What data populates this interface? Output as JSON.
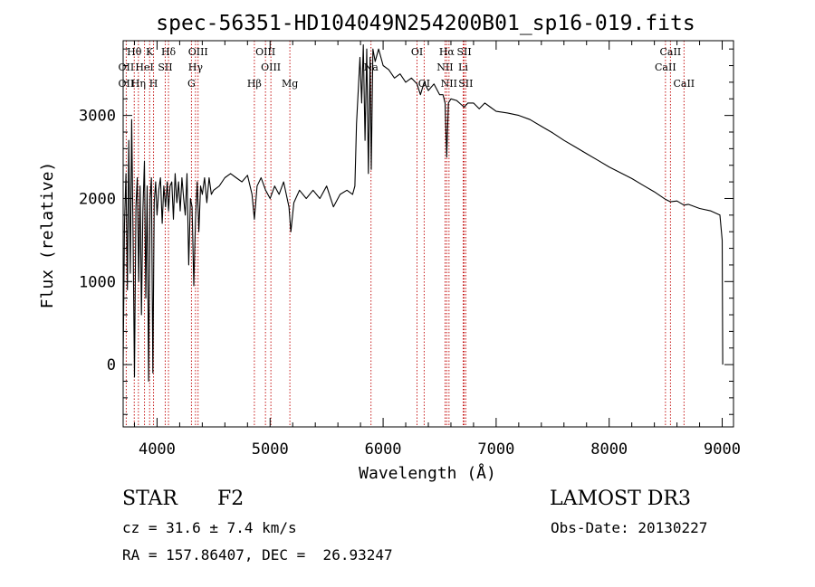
{
  "chart_data": {
    "type": "line",
    "title": "spec-56351-HD104049N254200B01_sp16-019.fits",
    "xlabel": "Wavelength (Å)",
    "ylabel": "Flux (relative)",
    "xlim": [
      3700,
      9100
    ],
    "ylim": [
      -750,
      3900
    ],
    "xticks": [
      4000,
      5000,
      6000,
      7000,
      8000,
      9000
    ],
    "yticks": [
      0,
      1000,
      2000,
      3000
    ],
    "grid": false,
    "series": [
      {
        "name": "spectrum",
        "points": [
          [
            3700,
            0
          ],
          [
            3712,
            1700
          ],
          [
            3725,
            2300
          ],
          [
            3738,
            900
          ],
          [
            3750,
            2700
          ],
          [
            3763,
            1100
          ],
          [
            3775,
            2950
          ],
          [
            3788,
            1500
          ],
          [
            3800,
            -150
          ],
          [
            3813,
            1900
          ],
          [
            3825,
            2250
          ],
          [
            3838,
            1000
          ],
          [
            3850,
            2150
          ],
          [
            3862,
            600
          ],
          [
            3875,
            1850
          ],
          [
            3888,
            2450
          ],
          [
            3900,
            800
          ],
          [
            3912,
            2150
          ],
          [
            3925,
            -200
          ],
          [
            3938,
            2000
          ],
          [
            3950,
            2250
          ],
          [
            3963,
            -100
          ],
          [
            3975,
            1950
          ],
          [
            3988,
            2200
          ],
          [
            4000,
            1800
          ],
          [
            4015,
            2100
          ],
          [
            4030,
            2250
          ],
          [
            4045,
            1700
          ],
          [
            4060,
            2150
          ],
          [
            4075,
            1900
          ],
          [
            4090,
            2200
          ],
          [
            4101,
            1850
          ],
          [
            4115,
            2150
          ],
          [
            4130,
            2200
          ],
          [
            4145,
            1750
          ],
          [
            4160,
            2300
          ],
          [
            4175,
            1950
          ],
          [
            4190,
            2200
          ],
          [
            4205,
            1850
          ],
          [
            4220,
            2250
          ],
          [
            4235,
            2000
          ],
          [
            4250,
            1800
          ],
          [
            4265,
            2300
          ],
          [
            4280,
            1200
          ],
          [
            4295,
            2000
          ],
          [
            4310,
            1900
          ],
          [
            4325,
            950
          ],
          [
            4340,
            1750
          ],
          [
            4355,
            2200
          ],
          [
            4370,
            1600
          ],
          [
            4385,
            2150
          ],
          [
            4400,
            2050
          ],
          [
            4420,
            2250
          ],
          [
            4440,
            1950
          ],
          [
            4460,
            2250
          ],
          [
            4480,
            2050
          ],
          [
            4500,
            2100
          ],
          [
            4550,
            2150
          ],
          [
            4600,
            2250
          ],
          [
            4650,
            2300
          ],
          [
            4700,
            2250
          ],
          [
            4750,
            2200
          ],
          [
            4800,
            2280
          ],
          [
            4840,
            2050
          ],
          [
            4861,
            1750
          ],
          [
            4885,
            2150
          ],
          [
            4920,
            2250
          ],
          [
            4960,
            2100
          ],
          [
            5000,
            2000
          ],
          [
            5040,
            2150
          ],
          [
            5080,
            2050
          ],
          [
            5120,
            2200
          ],
          [
            5167,
            1900
          ],
          [
            5184,
            1600
          ],
          [
            5210,
            1950
          ],
          [
            5260,
            2100
          ],
          [
            5320,
            2000
          ],
          [
            5380,
            2100
          ],
          [
            5440,
            2000
          ],
          [
            5500,
            2150
          ],
          [
            5560,
            1900
          ],
          [
            5620,
            2050
          ],
          [
            5680,
            2100
          ],
          [
            5730,
            2050
          ],
          [
            5750,
            2150
          ],
          [
            5765,
            2900
          ],
          [
            5780,
            3300
          ],
          [
            5795,
            3700
          ],
          [
            5810,
            3150
          ],
          [
            5825,
            3850
          ],
          [
            5840,
            2700
          ],
          [
            5855,
            3800
          ],
          [
            5870,
            2300
          ],
          [
            5885,
            3700
          ],
          [
            5895,
            2350
          ],
          [
            5910,
            3800
          ],
          [
            5930,
            3650
          ],
          [
            5960,
            3800
          ],
          [
            6000,
            3600
          ],
          [
            6050,
            3550
          ],
          [
            6100,
            3450
          ],
          [
            6150,
            3500
          ],
          [
            6200,
            3400
          ],
          [
            6250,
            3450
          ],
          [
            6300,
            3380
          ],
          [
            6330,
            3250
          ],
          [
            6363,
            3400
          ],
          [
            6400,
            3300
          ],
          [
            6450,
            3380
          ],
          [
            6500,
            3250
          ],
          [
            6530,
            3250
          ],
          [
            6548,
            3150
          ],
          [
            6563,
            2500
          ],
          [
            6578,
            3150
          ],
          [
            6600,
            3200
          ],
          [
            6650,
            3180
          ],
          [
            6717,
            3100
          ],
          [
            6750,
            3150
          ],
          [
            6800,
            3150
          ],
          [
            6850,
            3080
          ],
          [
            6900,
            3150
          ],
          [
            6950,
            3100
          ],
          [
            7000,
            3050
          ],
          [
            7100,
            3030
          ],
          [
            7200,
            3000
          ],
          [
            7300,
            2950
          ],
          [
            7400,
            2870
          ],
          [
            7500,
            2790
          ],
          [
            7600,
            2700
          ],
          [
            7700,
            2620
          ],
          [
            7800,
            2540
          ],
          [
            7900,
            2460
          ],
          [
            8000,
            2380
          ],
          [
            8100,
            2310
          ],
          [
            8200,
            2240
          ],
          [
            8300,
            2160
          ],
          [
            8400,
            2080
          ],
          [
            8498,
            1990
          ],
          [
            8542,
            1960
          ],
          [
            8600,
            1970
          ],
          [
            8662,
            1920
          ],
          [
            8700,
            1930
          ],
          [
            8800,
            1880
          ],
          [
            8900,
            1850
          ],
          [
            8980,
            1800
          ],
          [
            9000,
            1500
          ],
          [
            9005,
            0
          ]
        ]
      }
    ],
    "line_markers": [
      {
        "label": "Hθ",
        "x": 3798,
        "row": 1
      },
      {
        "label": "OII",
        "x": 3727,
        "row": 2
      },
      {
        "label": "OII",
        "x": 3727,
        "row": 3
      },
      {
        "label": "K",
        "x": 3934,
        "row": 1
      },
      {
        "label": "HeI",
        "x": 3889,
        "row": 2
      },
      {
        "label": "Hη",
        "x": 3835,
        "row": 3
      },
      {
        "label": "SII",
        "x": 4072,
        "row": 2
      },
      {
        "label": "H",
        "x": 3969,
        "row": 3
      },
      {
        "label": "Hδ",
        "x": 4101,
        "row": 1
      },
      {
        "label": "OIII",
        "x": 4363,
        "row": 1
      },
      {
        "label": "Hγ",
        "x": 4340,
        "row": 2
      },
      {
        "label": "G",
        "x": 4304,
        "row": 3
      },
      {
        "label": "Hβ",
        "x": 4861,
        "row": 3
      },
      {
        "label": "OIII",
        "x": 4959,
        "row": 1
      },
      {
        "label": "OIII",
        "x": 5007,
        "row": 2
      },
      {
        "label": "Mg",
        "x": 5175,
        "row": 3
      },
      {
        "label": "Na",
        "x": 5893,
        "row": 2
      },
      {
        "label": "OI",
        "x": 6300,
        "row": 1
      },
      {
        "label": "OI",
        "x": 6363,
        "row": 3
      },
      {
        "label": "Hα",
        "x": 6563,
        "row": 1
      },
      {
        "label": "NII",
        "x": 6548,
        "row": 2
      },
      {
        "label": "NII",
        "x": 6583,
        "row": 3
      },
      {
        "label": "SII",
        "x": 6717,
        "row": 1
      },
      {
        "label": "Li",
        "x": 6708,
        "row": 2
      },
      {
        "label": "SII",
        "x": 6731,
        "row": 3
      },
      {
        "label": "CaII",
        "x": 8542,
        "row": 1
      },
      {
        "label": "CaII",
        "x": 8498,
        "row": 2
      },
      {
        "label": "CaII",
        "x": 8662,
        "row": 3
      }
    ]
  },
  "info": {
    "class_label": "STAR",
    "subclass_label": "F2",
    "survey": "LAMOST DR3",
    "redshift": "cz = 31.6 ± 7.4 km/s",
    "obs_date": "Obs-Date: 20130227",
    "coords": "RA = 157.86407, DEC =  26.93247"
  }
}
